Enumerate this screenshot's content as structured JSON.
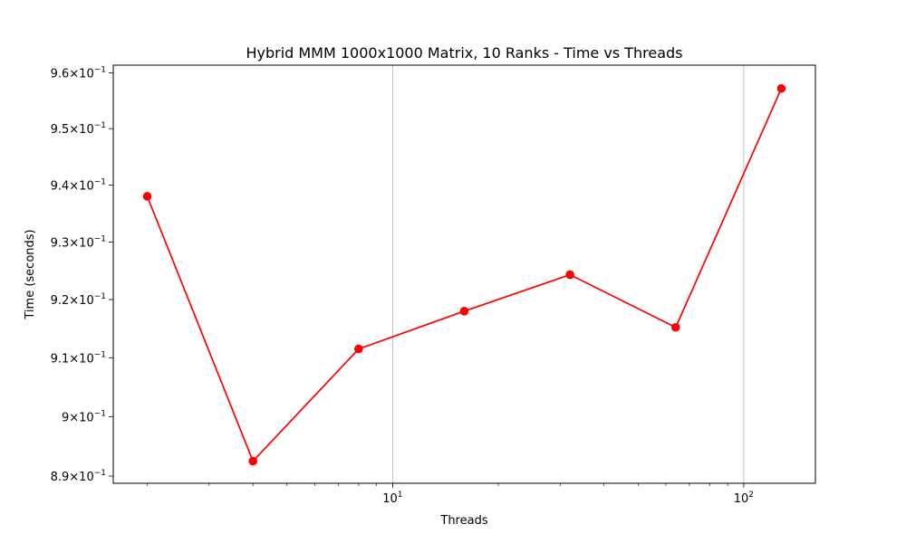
{
  "chart_data": {
    "type": "line",
    "title": "Hybrid MMM 1000x1000 Matrix, 10 Ranks - Time vs Threads",
    "xlabel": "Threads",
    "ylabel": "Time (seconds)",
    "xscale": "log",
    "yscale": "log",
    "xlim": [
      1.6,
      160
    ],
    "ylim": [
      0.8888,
      0.9614
    ],
    "grid": "x-major only",
    "x_ticks": [
      {
        "value": 10,
        "base": "10",
        "exp": "1"
      },
      {
        "value": 100,
        "base": "10",
        "exp": "2"
      }
    ],
    "y_ticks": [
      {
        "value": 0.89,
        "mant": "8.9",
        "base": "10",
        "exp": "−1"
      },
      {
        "value": 0.9,
        "mant": "9",
        "base": "10",
        "exp": "−1"
      },
      {
        "value": 0.91,
        "mant": "9.1",
        "base": "10",
        "exp": "−1"
      },
      {
        "value": 0.92,
        "mant": "9.2",
        "base": "10",
        "exp": "−1"
      },
      {
        "value": 0.93,
        "mant": "9.3",
        "base": "10",
        "exp": "−1"
      },
      {
        "value": 0.94,
        "mant": "9.4",
        "base": "10",
        "exp": "−1"
      },
      {
        "value": 0.95,
        "mant": "9.5",
        "base": "10",
        "exp": "−1"
      },
      {
        "value": 0.96,
        "mant": "9.6",
        "base": "10",
        "exp": "−1"
      }
    ],
    "series": [
      {
        "color": "#ff0000",
        "marker": "circle",
        "x": [
          2,
          4,
          8,
          16,
          32,
          64,
          128
        ],
        "y": [
          0.938,
          0.8925,
          0.9115,
          0.918,
          0.9243,
          0.9152,
          0.9572
        ]
      }
    ]
  }
}
